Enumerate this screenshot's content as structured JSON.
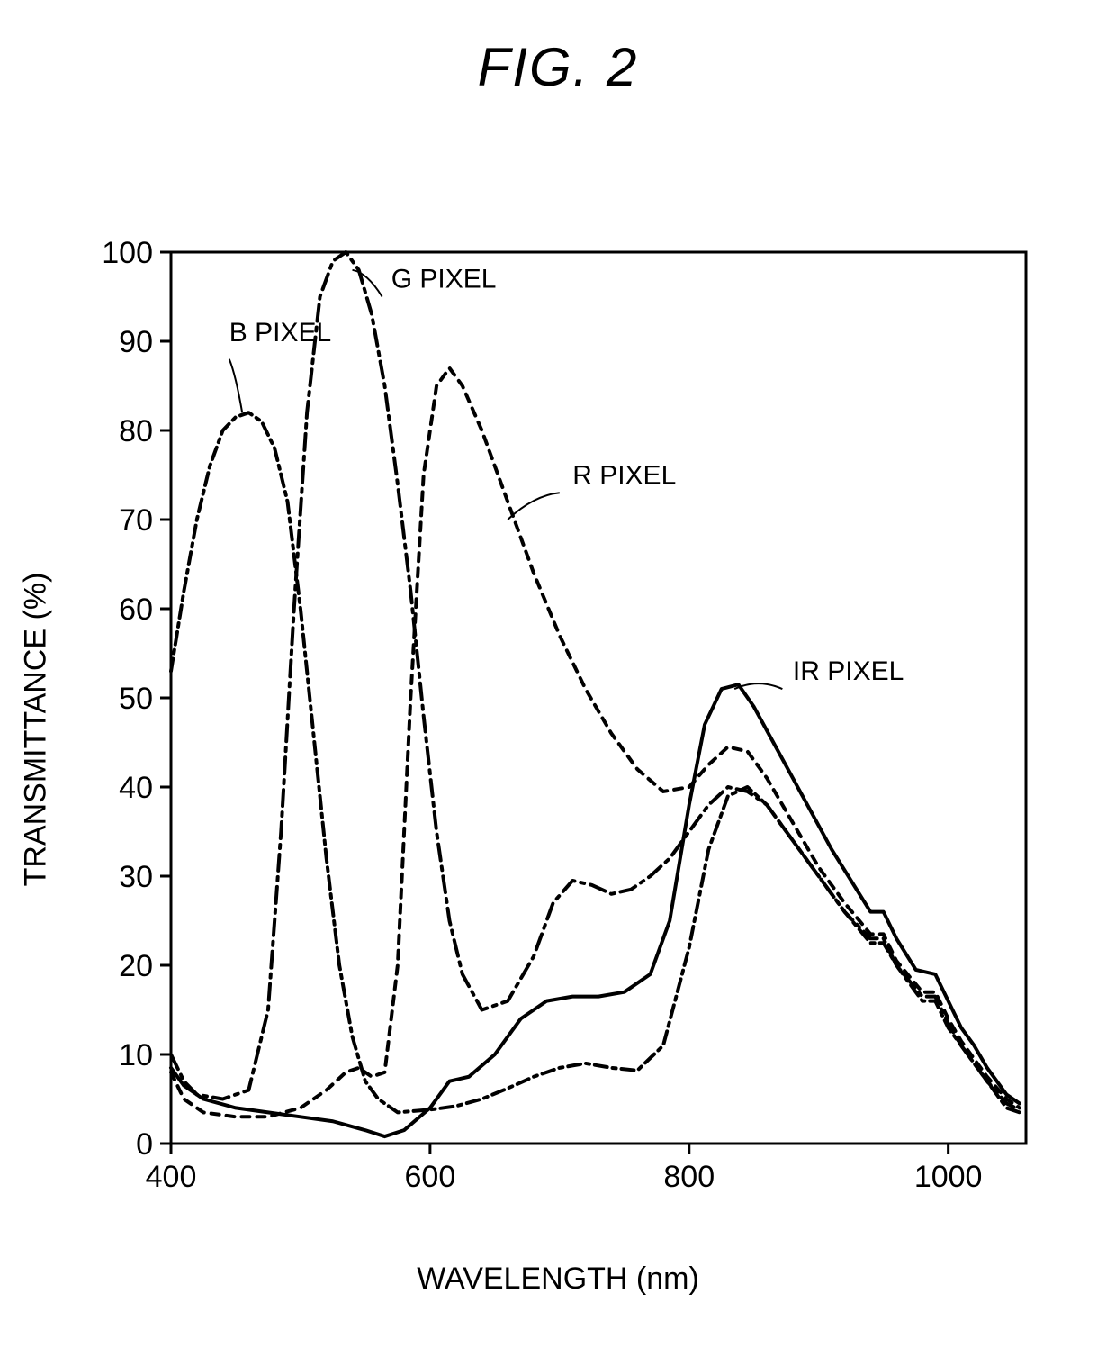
{
  "figure_title": "FIG. 2",
  "chart": {
    "type": "line",
    "background_color": "#ffffff",
    "axis_color": "#000000",
    "axis_line_width": 3,
    "plot_border_all_sides": true,
    "xlabel": "WAVELENGTH (nm)",
    "ylabel": "TRANSMITTANCE (%)",
    "label_fontsize": 34,
    "xlim": [
      400,
      1060
    ],
    "ylim": [
      0,
      100
    ],
    "xticks": [
      400,
      600,
      800,
      1000
    ],
    "yticks": [
      0,
      10,
      20,
      30,
      40,
      50,
      60,
      70,
      80,
      90,
      100
    ],
    "tick_fontsize": 34,
    "tick_length": 12,
    "grid": false,
    "line_width": 4,
    "series": {
      "B": {
        "label": "B PIXEL",
        "color": "#000000",
        "dash": "14 6 4 6",
        "label_pos": {
          "x": 445,
          "y": 90,
          "leader_to": {
            "x": 455,
            "y": 82
          },
          "leader_from": {
            "x": 445,
            "y": 88
          }
        },
        "data": [
          {
            "x": 400,
            "y": 53
          },
          {
            "x": 410,
            "y": 62
          },
          {
            "x": 420,
            "y": 70
          },
          {
            "x": 430,
            "y": 76
          },
          {
            "x": 440,
            "y": 80
          },
          {
            "x": 450,
            "y": 81.5
          },
          {
            "x": 460,
            "y": 82
          },
          {
            "x": 470,
            "y": 81
          },
          {
            "x": 480,
            "y": 78
          },
          {
            "x": 490,
            "y": 72
          },
          {
            "x": 500,
            "y": 60
          },
          {
            "x": 510,
            "y": 46
          },
          {
            "x": 520,
            "y": 32
          },
          {
            "x": 530,
            "y": 20
          },
          {
            "x": 540,
            "y": 12
          },
          {
            "x": 550,
            "y": 7
          },
          {
            "x": 560,
            "y": 5
          },
          {
            "x": 575,
            "y": 3.5
          },
          {
            "x": 600,
            "y": 3.8
          },
          {
            "x": 620,
            "y": 4.2
          },
          {
            "x": 640,
            "y": 5
          },
          {
            "x": 660,
            "y": 6.2
          },
          {
            "x": 680,
            "y": 7.5
          },
          {
            "x": 700,
            "y": 8.5
          },
          {
            "x": 720,
            "y": 9
          },
          {
            "x": 740,
            "y": 8.5
          },
          {
            "x": 760,
            "y": 8.2
          },
          {
            "x": 780,
            "y": 11
          },
          {
            "x": 800,
            "y": 22
          },
          {
            "x": 815,
            "y": 33
          },
          {
            "x": 830,
            "y": 39
          },
          {
            "x": 845,
            "y": 40
          },
          {
            "x": 860,
            "y": 38
          },
          {
            "x": 880,
            "y": 34
          },
          {
            "x": 900,
            "y": 30
          },
          {
            "x": 920,
            "y": 26
          },
          {
            "x": 940,
            "y": 22.5
          },
          {
            "x": 950,
            "y": 22.5
          },
          {
            "x": 960,
            "y": 20
          },
          {
            "x": 980,
            "y": 16
          },
          {
            "x": 990,
            "y": 16
          },
          {
            "x": 1000,
            "y": 13
          },
          {
            "x": 1010,
            "y": 11
          },
          {
            "x": 1020,
            "y": 9
          },
          {
            "x": 1030,
            "y": 7
          },
          {
            "x": 1045,
            "y": 4
          },
          {
            "x": 1055,
            "y": 3.5
          }
        ]
      },
      "G": {
        "label": "G PIXEL",
        "color": "#000000",
        "dash": "18 7 4 7",
        "label_pos": {
          "x": 570,
          "y": 96,
          "leader_to": {
            "x": 540,
            "y": 98
          },
          "leader_from": {
            "x": 563,
            "y": 95
          }
        },
        "data": [
          {
            "x": 400,
            "y": 10
          },
          {
            "x": 410,
            "y": 7
          },
          {
            "x": 420,
            "y": 5.5
          },
          {
            "x": 440,
            "y": 5
          },
          {
            "x": 460,
            "y": 6
          },
          {
            "x": 475,
            "y": 15
          },
          {
            "x": 485,
            "y": 35
          },
          {
            "x": 495,
            "y": 60
          },
          {
            "x": 505,
            "y": 82
          },
          {
            "x": 515,
            "y": 95
          },
          {
            "x": 525,
            "y": 99
          },
          {
            "x": 535,
            "y": 100
          },
          {
            "x": 545,
            "y": 98
          },
          {
            "x": 555,
            "y": 93
          },
          {
            "x": 565,
            "y": 85
          },
          {
            "x": 575,
            "y": 74
          },
          {
            "x": 585,
            "y": 62
          },
          {
            "x": 595,
            "y": 48
          },
          {
            "x": 605,
            "y": 35
          },
          {
            "x": 615,
            "y": 25
          },
          {
            "x": 625,
            "y": 19
          },
          {
            "x": 640,
            "y": 15
          },
          {
            "x": 660,
            "y": 16
          },
          {
            "x": 680,
            "y": 21
          },
          {
            "x": 695,
            "y": 27
          },
          {
            "x": 710,
            "y": 29.5
          },
          {
            "x": 725,
            "y": 29
          },
          {
            "x": 740,
            "y": 28
          },
          {
            "x": 755,
            "y": 28.5
          },
          {
            "x": 770,
            "y": 30
          },
          {
            "x": 785,
            "y": 32
          },
          {
            "x": 800,
            "y": 35
          },
          {
            "x": 815,
            "y": 38
          },
          {
            "x": 830,
            "y": 40
          },
          {
            "x": 845,
            "y": 39.5
          },
          {
            "x": 860,
            "y": 38
          },
          {
            "x": 880,
            "y": 34
          },
          {
            "x": 900,
            "y": 30
          },
          {
            "x": 920,
            "y": 26
          },
          {
            "x": 940,
            "y": 23
          },
          {
            "x": 950,
            "y": 23
          },
          {
            "x": 960,
            "y": 20
          },
          {
            "x": 980,
            "y": 16.5
          },
          {
            "x": 990,
            "y": 16.5
          },
          {
            "x": 1000,
            "y": 13.5
          },
          {
            "x": 1010,
            "y": 11
          },
          {
            "x": 1020,
            "y": 9
          },
          {
            "x": 1030,
            "y": 7
          },
          {
            "x": 1045,
            "y": 4.5
          },
          {
            "x": 1055,
            "y": 3.8
          }
        ]
      },
      "R": {
        "label": "R PIXEL",
        "color": "#000000",
        "dash": "9 8",
        "label_pos": {
          "x": 710,
          "y": 74,
          "leader_to": {
            "x": 660,
            "y": 70
          },
          "leader_from": {
            "x": 700,
            "y": 73
          }
        },
        "data": [
          {
            "x": 400,
            "y": 8
          },
          {
            "x": 410,
            "y": 5
          },
          {
            "x": 425,
            "y": 3.5
          },
          {
            "x": 450,
            "y": 3
          },
          {
            "x": 475,
            "y": 3
          },
          {
            "x": 500,
            "y": 4
          },
          {
            "x": 520,
            "y": 6
          },
          {
            "x": 535,
            "y": 8
          },
          {
            "x": 545,
            "y": 8.5
          },
          {
            "x": 555,
            "y": 7.5
          },
          {
            "x": 565,
            "y": 8
          },
          {
            "x": 575,
            "y": 20
          },
          {
            "x": 585,
            "y": 50
          },
          {
            "x": 595,
            "y": 75
          },
          {
            "x": 605,
            "y": 85
          },
          {
            "x": 615,
            "y": 87
          },
          {
            "x": 625,
            "y": 85
          },
          {
            "x": 640,
            "y": 80
          },
          {
            "x": 660,
            "y": 72
          },
          {
            "x": 680,
            "y": 64
          },
          {
            "x": 700,
            "y": 57
          },
          {
            "x": 720,
            "y": 51
          },
          {
            "x": 740,
            "y": 46
          },
          {
            "x": 760,
            "y": 42
          },
          {
            "x": 780,
            "y": 39.5
          },
          {
            "x": 800,
            "y": 40
          },
          {
            "x": 815,
            "y": 42.5
          },
          {
            "x": 830,
            "y": 44.5
          },
          {
            "x": 845,
            "y": 44
          },
          {
            "x": 860,
            "y": 41
          },
          {
            "x": 880,
            "y": 36
          },
          {
            "x": 900,
            "y": 31
          },
          {
            "x": 920,
            "y": 27
          },
          {
            "x": 940,
            "y": 23.5
          },
          {
            "x": 950,
            "y": 23.5
          },
          {
            "x": 960,
            "y": 20.5
          },
          {
            "x": 980,
            "y": 17
          },
          {
            "x": 990,
            "y": 17
          },
          {
            "x": 1000,
            "y": 14
          },
          {
            "x": 1010,
            "y": 11.5
          },
          {
            "x": 1020,
            "y": 9.5
          },
          {
            "x": 1030,
            "y": 7.5
          },
          {
            "x": 1045,
            "y": 5
          },
          {
            "x": 1055,
            "y": 4
          }
        ]
      },
      "IR": {
        "label": "IR PIXEL",
        "color": "#000000",
        "dash": "",
        "label_pos": {
          "x": 880,
          "y": 52,
          "leader_to": {
            "x": 835,
            "y": 51
          },
          "leader_from": {
            "x": 872,
            "y": 51
          }
        },
        "data": [
          {
            "x": 400,
            "y": 8.5
          },
          {
            "x": 410,
            "y": 6.5
          },
          {
            "x": 425,
            "y": 5
          },
          {
            "x": 450,
            "y": 4
          },
          {
            "x": 475,
            "y": 3.5
          },
          {
            "x": 500,
            "y": 3
          },
          {
            "x": 525,
            "y": 2.5
          },
          {
            "x": 550,
            "y": 1.5
          },
          {
            "x": 565,
            "y": 0.8
          },
          {
            "x": 580,
            "y": 1.5
          },
          {
            "x": 600,
            "y": 4
          },
          {
            "x": 615,
            "y": 7
          },
          {
            "x": 630,
            "y": 7.5
          },
          {
            "x": 650,
            "y": 10
          },
          {
            "x": 670,
            "y": 14
          },
          {
            "x": 690,
            "y": 16
          },
          {
            "x": 710,
            "y": 16.5
          },
          {
            "x": 730,
            "y": 16.5
          },
          {
            "x": 750,
            "y": 17
          },
          {
            "x": 770,
            "y": 19
          },
          {
            "x": 785,
            "y": 25
          },
          {
            "x": 800,
            "y": 38
          },
          {
            "x": 812,
            "y": 47
          },
          {
            "x": 825,
            "y": 51
          },
          {
            "x": 838,
            "y": 51.5
          },
          {
            "x": 850,
            "y": 49
          },
          {
            "x": 865,
            "y": 45
          },
          {
            "x": 880,
            "y": 41
          },
          {
            "x": 895,
            "y": 37
          },
          {
            "x": 910,
            "y": 33
          },
          {
            "x": 925,
            "y": 29.5
          },
          {
            "x": 940,
            "y": 26
          },
          {
            "x": 950,
            "y": 26
          },
          {
            "x": 960,
            "y": 23
          },
          {
            "x": 975,
            "y": 19.5
          },
          {
            "x": 990,
            "y": 19
          },
          {
            "x": 1000,
            "y": 16
          },
          {
            "x": 1010,
            "y": 13
          },
          {
            "x": 1020,
            "y": 11
          },
          {
            "x": 1030,
            "y": 8.5
          },
          {
            "x": 1045,
            "y": 5.5
          },
          {
            "x": 1055,
            "y": 4.5
          }
        ]
      }
    }
  }
}
